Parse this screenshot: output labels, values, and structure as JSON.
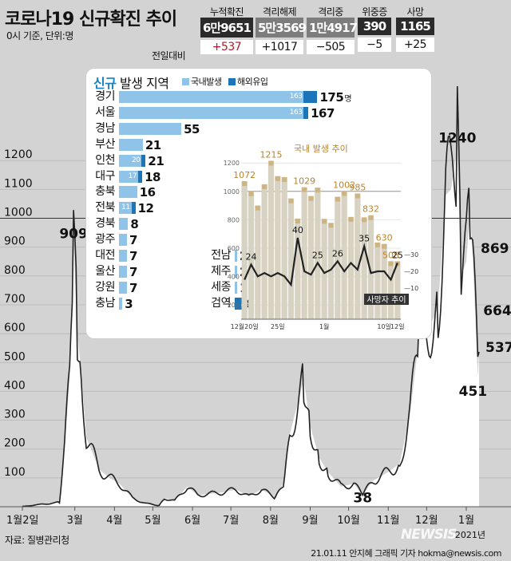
{
  "header": {
    "title_bold": "코로나19",
    "title_rest": "신규확진 추이",
    "subtitle": "0시 기준, 단위:명",
    "prev_day_label": "전일대비"
  },
  "stats": [
    {
      "label": "누적확진",
      "value": "6만9651",
      "change": "+537"
    },
    {
      "label": "격리해제",
      "value": "5만3569",
      "change": "+1017"
    },
    {
      "label": "격리중",
      "value": "1만4917",
      "change": "−505"
    },
    {
      "label": "위중증",
      "value": "390",
      "change": "−5"
    },
    {
      "label": "사망",
      "value": "1165",
      "change": "+25"
    }
  ],
  "panel": {
    "title_bold": "신규",
    "title_rest": "발생 지역",
    "legend_domestic": "국내발생",
    "legend_overseas": "해외유입",
    "unit": "명"
  },
  "regions": [
    {
      "name": "경기",
      "domestic": 163,
      "total": 175
    },
    {
      "name": "서울",
      "domestic": 163,
      "total": 167
    },
    {
      "name": "경남",
      "domestic": 55,
      "total": 55
    },
    {
      "name": "부산",
      "domestic": 21,
      "total": 21
    },
    {
      "name": "인천",
      "domestic": 20,
      "total": 21
    },
    {
      "name": "대구",
      "domestic": 17,
      "total": 18
    },
    {
      "name": "충북",
      "domestic": 16,
      "total": 16
    },
    {
      "name": "전북",
      "domestic": 11,
      "total": 12
    },
    {
      "name": "경북",
      "domestic": 8,
      "total": 8
    },
    {
      "name": "광주",
      "domestic": 7,
      "total": 7
    },
    {
      "name": "대전",
      "domestic": 7,
      "total": 7
    },
    {
      "name": "울산",
      "domestic": 7,
      "total": 7
    },
    {
      "name": "강원",
      "domestic": 7,
      "total": 7
    },
    {
      "name": "충남",
      "domestic": 3,
      "total": 3
    },
    {
      "name": "전남",
      "domestic": 2,
      "total": 2
    },
    {
      "name": "제주",
      "domestic": 2,
      "total": 2
    },
    {
      "name": "세종",
      "domestic": 1,
      "total": 1
    },
    {
      "name": "검역",
      "domestic": 0,
      "total": 8
    }
  ],
  "chart_data": [
    {
      "type": "area",
      "title": "코로나19 신규확진 추이",
      "ylim": [
        0,
        1300
      ],
      "yticks": [
        100,
        200,
        300,
        400,
        500,
        600,
        700,
        800,
        900,
        1000,
        1100,
        1200
      ],
      "xticks": [
        "1월2일",
        "3월",
        "4월",
        "5월",
        "6월",
        "7월",
        "8월",
        "9월",
        "10월",
        "11월",
        "12월",
        "1월"
      ],
      "year_label": "2021년",
      "annotations": [
        {
          "label": "909",
          "value": 909
        },
        {
          "label": "38",
          "value": 38
        },
        {
          "label": "1240",
          "value": 1240
        },
        {
          "label": "869",
          "value": 869
        },
        {
          "label": "664",
          "value": 664
        },
        {
          "label": "451",
          "value": 451
        },
        {
          "label": "537",
          "value": 537
        }
      ],
      "x": [
        "2020-01-20",
        "2020-02-18",
        "2020-02-22",
        "2020-02-26",
        "2020-02-29",
        "2020-03-03",
        "2020-03-06",
        "2020-03-10",
        "2020-03-20",
        "2020-03-28",
        "2020-04-05",
        "2020-04-15",
        "2020-04-25",
        "2020-05-06",
        "2020-05-10",
        "2020-05-18",
        "2020-05-28",
        "2020-06-05",
        "2020-06-15",
        "2020-06-25",
        "2020-07-05",
        "2020-07-15",
        "2020-07-25",
        "2020-08-05",
        "2020-08-12",
        "2020-08-16",
        "2020-08-20",
        "2020-08-27",
        "2020-09-01",
        "2020-09-08",
        "2020-09-15",
        "2020-09-25",
        "2020-10-05",
        "2020-10-12",
        "2020-10-20",
        "2020-11-01",
        "2020-11-10",
        "2020-11-18",
        "2020-11-25",
        "2020-12-01",
        "2020-12-10",
        "2020-12-16",
        "2020-12-20",
        "2020-12-25",
        "2020-12-28",
        "2021-01-01",
        "2021-01-04",
        "2021-01-06",
        "2021-01-08",
        "2021-01-10",
        "2021-01-11"
      ],
      "values": [
        1,
        15,
        200,
        450,
        909,
        600,
        470,
        240,
        130,
        100,
        80,
        30,
        12,
        4,
        30,
        20,
        70,
        40,
        45,
        50,
        60,
        35,
        60,
        30,
        90,
        250,
        320,
        440,
        280,
        170,
        120,
        70,
        80,
        40,
        90,
        120,
        150,
        320,
        580,
        600,
        690,
        1080,
        1100,
        1240,
        800,
        850,
        1020,
        869,
        664,
        451,
        537
      ]
    },
    {
      "type": "bar",
      "title": "국내 발생 추이",
      "x": [
        "12월20일",
        "21",
        "22",
        "23",
        "24",
        "25일",
        "26",
        "27",
        "28",
        "29",
        "30",
        "31",
        "1월",
        "2",
        "3",
        "4",
        "5",
        "6",
        "7",
        "8",
        "9",
        "10",
        "11",
        "12일"
      ],
      "xlabels": [
        "12월20일",
        "25일",
        "1월",
        "10일",
        "12일"
      ],
      "ylim": [
        0,
        1200
      ],
      "yticks": [
        200,
        400,
        600,
        800,
        1000,
        1200
      ],
      "values": [
        1072,
        1000,
        900,
        1050,
        1215,
        1107,
        1100,
        950,
        808,
        1029,
        967,
        1026,
        806,
        778,
        962,
        1002,
        820,
        985,
        817,
        832,
        640,
        630,
        508,
        508
      ],
      "labels": [
        {
          "value": 1072
        },
        {
          "value": 1215
        },
        {
          "value": 1029
        },
        {
          "value": 1002
        },
        {
          "value": 985
        },
        {
          "value": 832
        },
        {
          "value": 630
        },
        {
          "value": 508
        }
      ]
    },
    {
      "type": "line",
      "title": "사망자 추이",
      "x": [
        "12월20일",
        "21",
        "22",
        "23",
        "24",
        "25일",
        "26",
        "27",
        "28",
        "29",
        "30",
        "31",
        "1월",
        "2",
        "3",
        "4",
        "5",
        "6",
        "7",
        "8",
        "9",
        "10",
        "11",
        "12일"
      ],
      "ylim": [
        0,
        40
      ],
      "yticks": [
        10,
        20,
        30
      ],
      "values": [
        15,
        24,
        17,
        19,
        17,
        19,
        17,
        12,
        40,
        20,
        18,
        25,
        19,
        21,
        26,
        20,
        25,
        21,
        35,
        19,
        20,
        20,
        15,
        25
      ],
      "labels": [
        {
          "value": 24
        },
        {
          "value": 40
        },
        {
          "value": 25
        },
        {
          "value": 26
        },
        {
          "value": 35
        },
        {
          "value": 25
        }
      ]
    }
  ],
  "source": "자료: 질병관리청",
  "credit": "21.01.11 안지혜 그래픽 기자 hokma@newsis.com",
  "logo": "NEWSIS",
  "colors": {
    "area_fill": "#ffffff",
    "line": "#222222",
    "domestic_bar": "#8fc4e8",
    "overseas_bar": "#1c75b8",
    "inset_bar": "#d8d2c2",
    "inset_label": "#b8842e",
    "change_up": "#b0182a",
    "panel_accent": "#1b7fc4"
  }
}
